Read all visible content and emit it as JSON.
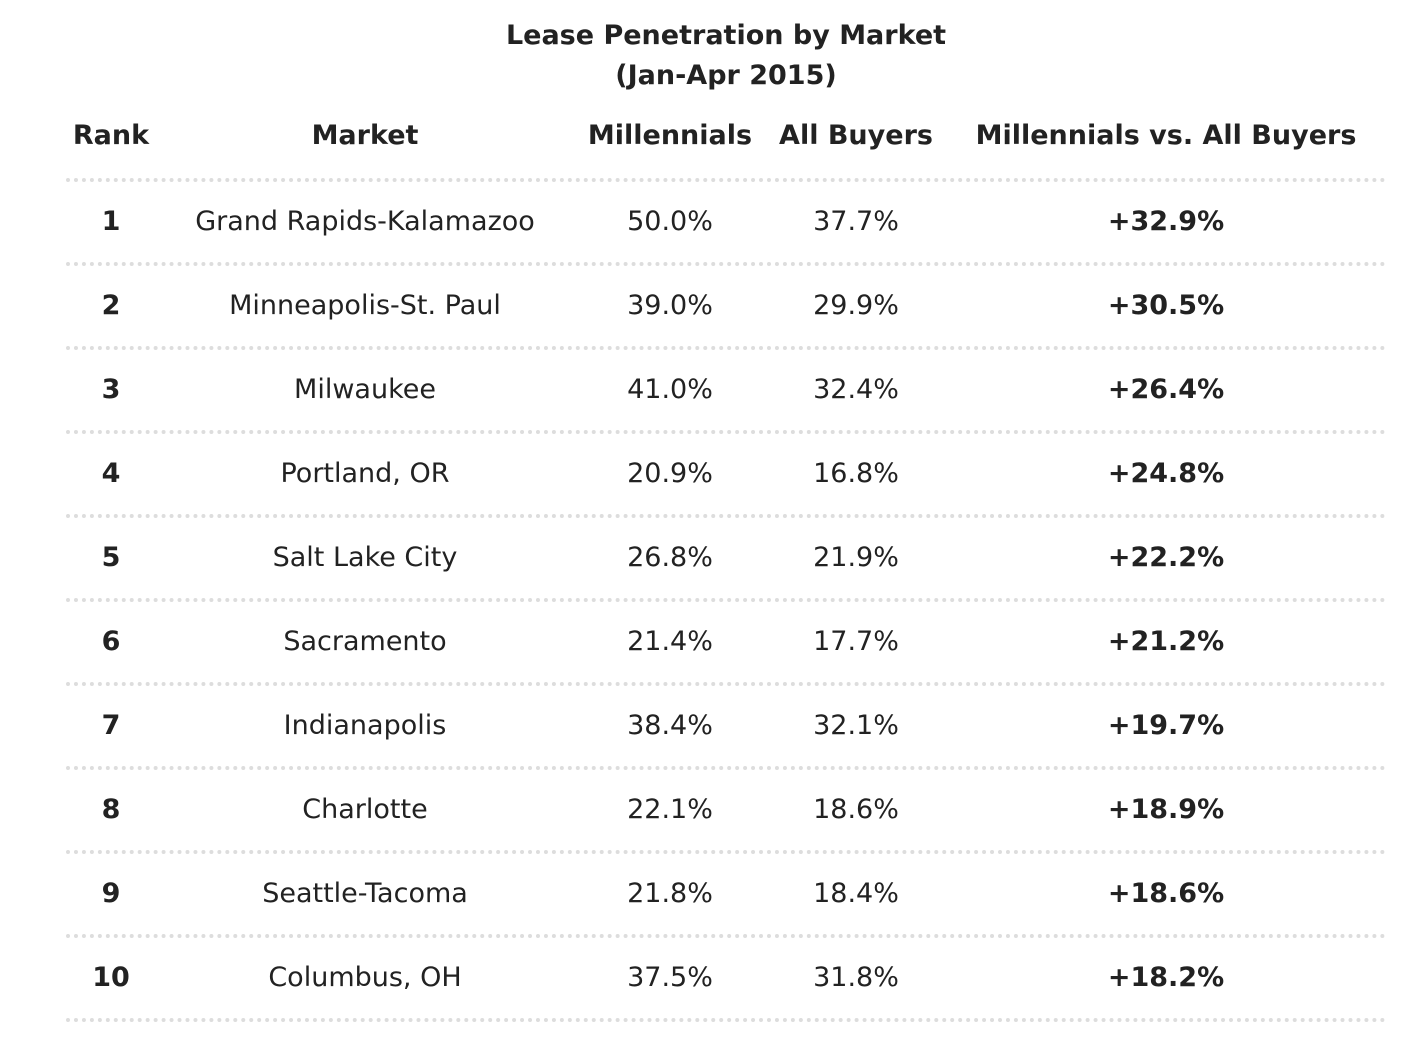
{
  "chart_data": {
    "type": "table",
    "title": "Lease Penetration by Market",
    "subtitle": "(Jan-Apr 2015)",
    "columns": [
      "Rank",
      "Market",
      "Millennials",
      "All Buyers",
      "Millennials vs. All Buyers"
    ],
    "rows": [
      {
        "rank": "1",
        "market": "Grand Rapids-Kalamazoo",
        "millennials": "50.0%",
        "all_buyers": "37.7%",
        "diff": "+32.9%"
      },
      {
        "rank": "2",
        "market": "Minneapolis-St. Paul",
        "millennials": "39.0%",
        "all_buyers": "29.9%",
        "diff": "+30.5%"
      },
      {
        "rank": "3",
        "market": "Milwaukee",
        "millennials": "41.0%",
        "all_buyers": "32.4%",
        "diff": "+26.4%"
      },
      {
        "rank": "4",
        "market": "Portland, OR",
        "millennials": "20.9%",
        "all_buyers": "16.8%",
        "diff": "+24.8%"
      },
      {
        "rank": "5",
        "market": "Salt Lake City",
        "millennials": "26.8%",
        "all_buyers": "21.9%",
        "diff": "+22.2%"
      },
      {
        "rank": "6",
        "market": "Sacramento",
        "millennials": "21.4%",
        "all_buyers": "17.7%",
        "diff": "+21.2%"
      },
      {
        "rank": "7",
        "market": "Indianapolis",
        "millennials": "38.4%",
        "all_buyers": "32.1%",
        "diff": "+19.7%"
      },
      {
        "rank": "8",
        "market": "Charlotte",
        "millennials": "22.1%",
        "all_buyers": "18.6%",
        "diff": "+18.9%"
      },
      {
        "rank": "9",
        "market": "Seattle-Tacoma",
        "millennials": "21.8%",
        "all_buyers": "18.4%",
        "diff": "+18.6%"
      },
      {
        "rank": "10",
        "market": "Columbus, OH",
        "millennials": "37.5%",
        "all_buyers": "31.8%",
        "diff": "+18.2%"
      }
    ]
  }
}
